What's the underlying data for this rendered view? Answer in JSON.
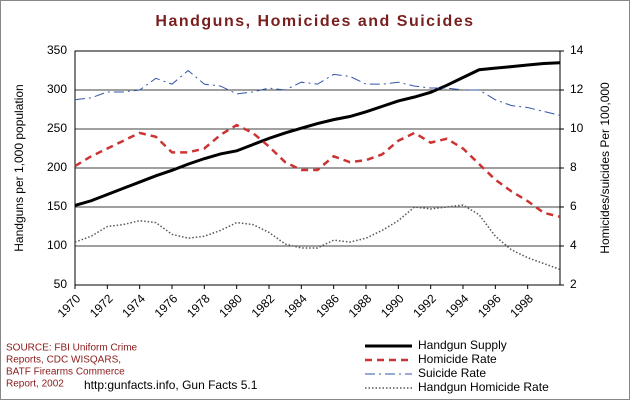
{
  "chart_data": {
    "type": "line",
    "title": "Handguns, Homicides and Suicides",
    "ylabel": "Handguns per 1,000 population",
    "y2label": "Homicides/suicides Per 100,000",
    "source": [
      "SOURCE: FBI Uniform Crime",
      "Reports, CDC WISQARS,",
      "BATF Firearms Commerce",
      "Report, 2002"
    ],
    "footnote": "http:gunfacts.info, Gun Facts 5.1",
    "x": [
      1970,
      1971,
      1972,
      1973,
      1974,
      1975,
      1976,
      1977,
      1978,
      1979,
      1980,
      1981,
      1982,
      1983,
      1984,
      1985,
      1986,
      1987,
      1988,
      1989,
      1990,
      1991,
      1992,
      1993,
      1994,
      1995,
      1996,
      1997,
      1998,
      1999,
      2000
    ],
    "xlim": [
      1970,
      2000
    ],
    "xticks": [
      1970,
      1972,
      1974,
      1976,
      1978,
      1980,
      1982,
      1984,
      1986,
      1988,
      1990,
      1992,
      1994,
      1996,
      1998
    ],
    "ylim": [
      50,
      350
    ],
    "yticks": [
      50,
      100,
      150,
      200,
      250,
      300,
      350
    ],
    "y2lim": [
      2,
      14
    ],
    "y2ticks": [
      2,
      4,
      6,
      8,
      10,
      12,
      14
    ],
    "grid": true,
    "series": [
      {
        "name": "Handgun Supply",
        "color": "#000000",
        "style": "solid",
        "axis": "y",
        "values": [
          152,
          158,
          166,
          174,
          182,
          190,
          197,
          205,
          212,
          218,
          222,
          230,
          238,
          245,
          251,
          257,
          262,
          266,
          272,
          279,
          286,
          291,
          297,
          306,
          316,
          326,
          328,
          330,
          332,
          334,
          335
        ]
      },
      {
        "name": "Homicide Rate",
        "color": "#cc3333",
        "style": "dashed",
        "axis": "y2",
        "values": [
          8.1,
          8.6,
          9.0,
          9.4,
          9.8,
          9.6,
          8.8,
          8.8,
          9.0,
          9.7,
          10.2,
          9.8,
          9.1,
          8.3,
          7.9,
          7.9,
          8.6,
          8.3,
          8.4,
          8.7,
          9.4,
          9.8,
          9.3,
          9.5,
          9.0,
          8.2,
          7.4,
          6.8,
          6.3,
          5.7,
          5.5
        ]
      },
      {
        "name": "Suicide Rate",
        "color": "#3355aa",
        "style": "dashdot",
        "axis": "y2",
        "values": [
          11.5,
          11.6,
          11.9,
          11.9,
          12.0,
          12.6,
          12.3,
          13.0,
          12.3,
          12.2,
          11.8,
          11.9,
          12.1,
          12.0,
          12.4,
          12.3,
          12.8,
          12.7,
          12.3,
          12.3,
          12.4,
          12.2,
          12.1,
          12.1,
          12.0,
          12.0,
          11.5,
          11.2,
          11.1,
          10.9,
          10.7
        ]
      },
      {
        "name": "Handgun Homicide Rate",
        "color": "#555555",
        "style": "dotted",
        "axis": "y2",
        "values": [
          4.2,
          4.5,
          5.0,
          5.1,
          5.3,
          5.2,
          4.6,
          4.4,
          4.5,
          4.8,
          5.2,
          5.1,
          4.7,
          4.1,
          3.9,
          3.9,
          4.3,
          4.2,
          4.4,
          4.8,
          5.3,
          6.0,
          5.9,
          6.0,
          6.1,
          5.6,
          4.5,
          3.8,
          3.4,
          3.1,
          2.8
        ]
      }
    ]
  }
}
